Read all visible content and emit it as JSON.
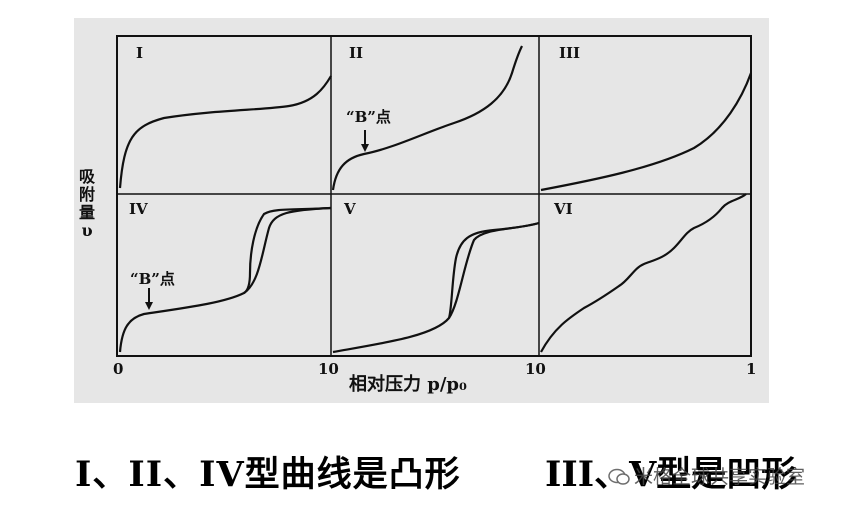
{
  "figure": {
    "y_axis_label": "吸附量 υ",
    "x_axis_label": "相对压力 p/p₀",
    "ticks": {
      "t0": "0",
      "t1": "10",
      "t2": "10",
      "t3": "1"
    },
    "panels": [
      {
        "label": "I"
      },
      {
        "label": "II",
        "note": "“B”点"
      },
      {
        "label": "III"
      },
      {
        "label": "IV",
        "note": "“B”点"
      },
      {
        "label": "V"
      },
      {
        "label": "VI"
      }
    ]
  },
  "caption": {
    "left": "I、II、IV型曲线是凸形",
    "right": "III、V型是凹形"
  },
  "watermark": "米格全球共享实验室",
  "colors": {
    "ink": "#111111",
    "panel_bg": "#e6e6e6"
  }
}
